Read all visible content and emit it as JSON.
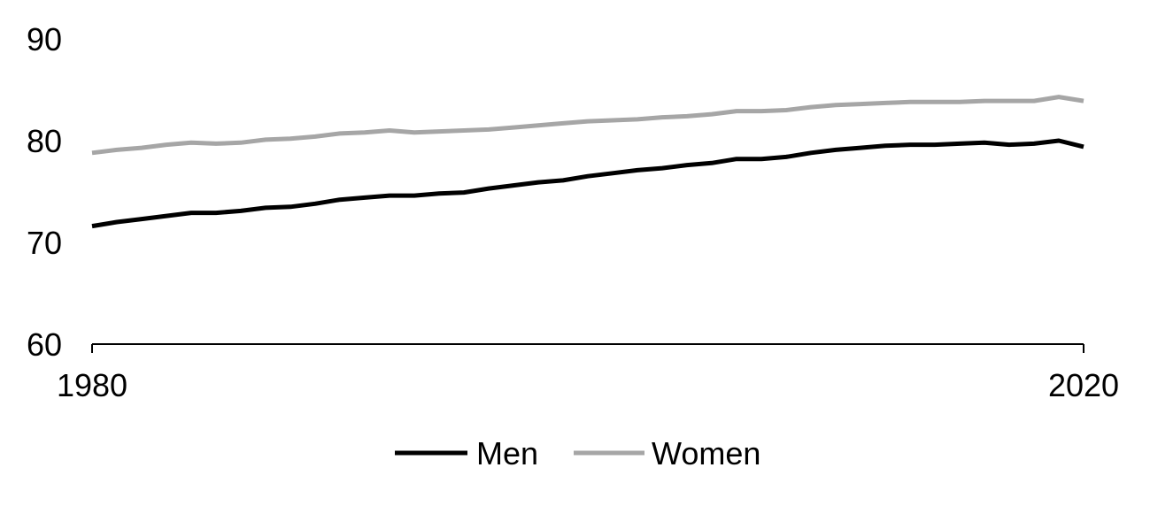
{
  "chart_data": {
    "type": "line",
    "title": "",
    "xlabel": "",
    "ylabel": "",
    "xlim": [
      1980,
      2020
    ],
    "ylim": [
      60,
      90
    ],
    "y_ticks": [
      60,
      70,
      80,
      90
    ],
    "x_ticks": [
      1980,
      2020
    ],
    "grid": false,
    "legend_position": "bottom-center",
    "x": [
      1980,
      1981,
      1982,
      1983,
      1984,
      1985,
      1986,
      1987,
      1988,
      1989,
      1990,
      1991,
      1992,
      1993,
      1994,
      1995,
      1996,
      1997,
      1998,
      1999,
      2000,
      2001,
      2002,
      2003,
      2004,
      2005,
      2006,
      2007,
      2008,
      2009,
      2010,
      2011,
      2012,
      2013,
      2014,
      2015,
      2016,
      2017,
      2018,
      2019,
      2020
    ],
    "series": [
      {
        "name": "Men",
        "color": "#000000",
        "values": [
          71.6,
          72.0,
          72.3,
          72.6,
          72.9,
          72.9,
          73.1,
          73.4,
          73.5,
          73.8,
          74.2,
          74.4,
          74.6,
          74.6,
          74.8,
          74.9,
          75.3,
          75.6,
          75.9,
          76.1,
          76.5,
          76.8,
          77.1,
          77.3,
          77.6,
          77.8,
          78.2,
          78.2,
          78.4,
          78.8,
          79.1,
          79.3,
          79.5,
          79.6,
          79.6,
          79.7,
          79.8,
          79.6,
          79.7,
          80.0,
          79.4
        ]
      },
      {
        "name": "Women",
        "color": "#a6a6a6",
        "values": [
          78.8,
          79.1,
          79.3,
          79.6,
          79.8,
          79.7,
          79.8,
          80.1,
          80.2,
          80.4,
          80.7,
          80.8,
          81.0,
          80.8,
          80.9,
          81.0,
          81.1,
          81.3,
          81.5,
          81.7,
          81.9,
          82.0,
          82.1,
          82.3,
          82.4,
          82.6,
          82.9,
          82.9,
          83.0,
          83.3,
          83.5,
          83.6,
          83.7,
          83.8,
          83.8,
          83.8,
          83.9,
          83.9,
          83.9,
          84.3,
          83.9
        ]
      }
    ]
  }
}
